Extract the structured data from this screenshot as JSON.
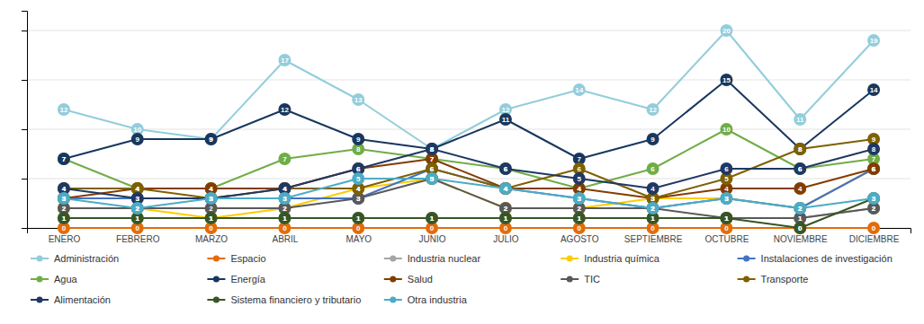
{
  "chart_data": {
    "type": "line",
    "categories": [
      "ENERO",
      "FEBRERO",
      "MARZO",
      "ABRIL",
      "MAYO",
      "JUNIO",
      "JULIO",
      "AGOSTO",
      "SEPTIEMBRE",
      "OCTUBRE",
      "NOVIEMBRE",
      "DICIEMBRE"
    ],
    "series": [
      {
        "name": "Administración",
        "color": "#92CDDC",
        "values": [
          12,
          10,
          9,
          17,
          13,
          8,
          12,
          14,
          12,
          20,
          11,
          19
        ]
      },
      {
        "name": "Espacio",
        "color": "#E36C09",
        "values": [
          0,
          0,
          0,
          0,
          0,
          0,
          0,
          0,
          0,
          0,
          0,
          0
        ]
      },
      {
        "name": "Industria nuclear",
        "color": "#A5A5A5",
        "values": [
          1,
          1,
          1,
          1,
          1,
          1,
          1,
          1,
          1,
          1,
          1,
          2
        ]
      },
      {
        "name": "Industria química",
        "color": "#FFCC00",
        "values": [
          2,
          2,
          1,
          2,
          4,
          5,
          2,
          2,
          3,
          3,
          2,
          6
        ]
      },
      {
        "name": "Instalaciones de investigación",
        "color": "#4472C4",
        "values": [
          3,
          3,
          3,
          3,
          3,
          6,
          4,
          3,
          2,
          3,
          2,
          6
        ]
      },
      {
        "name": "Agua",
        "color": "#70AD47",
        "values": [
          7,
          4,
          4,
          7,
          8,
          7,
          6,
          4,
          6,
          10,
          6,
          7
        ]
      },
      {
        "name": "Energía",
        "color": "#17375E",
        "values": [
          7,
          9,
          9,
          12,
          9,
          8,
          11,
          7,
          9,
          15,
          8,
          14
        ]
      },
      {
        "name": "Salud",
        "color": "#833C00",
        "values": [
          3,
          4,
          4,
          4,
          6,
          7,
          4,
          4,
          3,
          4,
          4,
          6
        ]
      },
      {
        "name": "TIC",
        "color": "#595959",
        "values": [
          2,
          2,
          2,
          2,
          3,
          5,
          2,
          2,
          2,
          1,
          1,
          2
        ]
      },
      {
        "name": "Transporte",
        "color": "#7F6000",
        "values": [
          4,
          4,
          3,
          4,
          4,
          6,
          4,
          6,
          3,
          5,
          8,
          9
        ]
      },
      {
        "name": "Alimentación",
        "color": "#1F3864",
        "values": [
          4,
          3,
          3,
          4,
          6,
          8,
          6,
          5,
          4,
          6,
          6,
          8
        ]
      },
      {
        "name": "Sistema financiero y tributario",
        "color": "#375623",
        "values": [
          1,
          1,
          1,
          1,
          1,
          1,
          1,
          1,
          1,
          1,
          0,
          3
        ]
      },
      {
        "name": "Otra industria",
        "color": "#4BACC6",
        "values": [
          3,
          2,
          3,
          3,
          5,
          5,
          4,
          3,
          2,
          3,
          2,
          3
        ]
      }
    ],
    "ylim": [
      0,
      22
    ],
    "yticks": [
      0,
      5,
      10,
      15,
      20
    ],
    "grid": true,
    "tick_labels": "x",
    "data_labels": true,
    "marker": "circle",
    "legend": "bottom"
  }
}
